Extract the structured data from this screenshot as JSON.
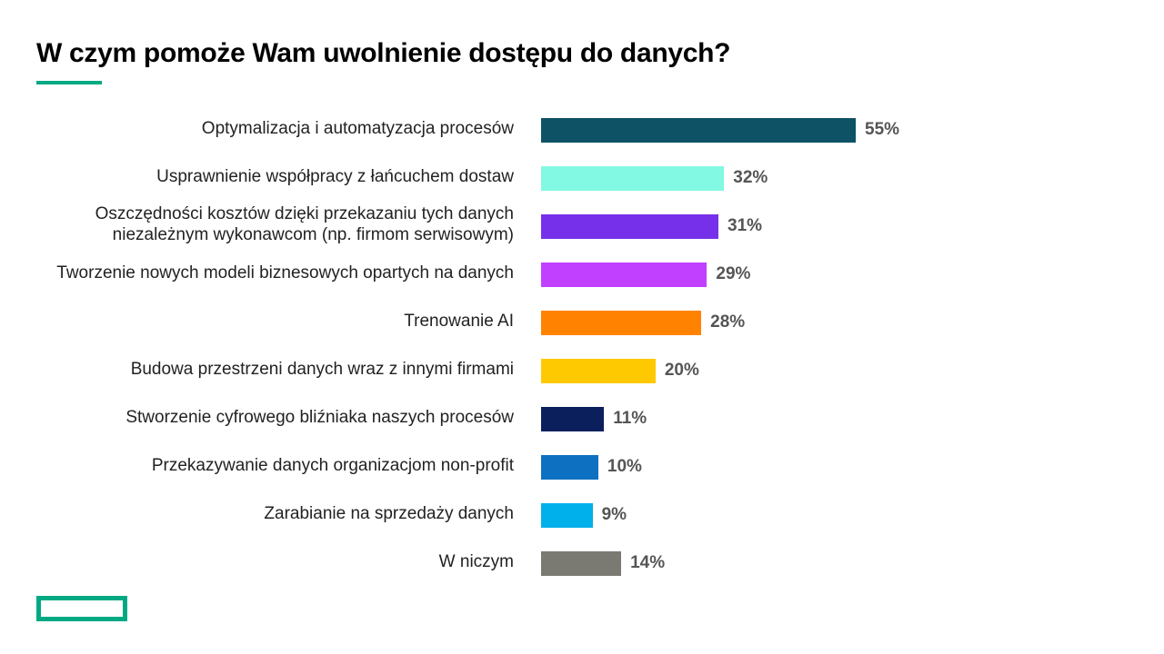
{
  "chart_data": {
    "type": "bar",
    "orientation": "horizontal",
    "title": "W czym pomoże Wam uwolnienie dostępu do danych?",
    "categories": [
      "Optymalizacja i automatyzacja procesów",
      "Usprawnienie współpracy z łańcuchem dostaw",
      "Oszczędności kosztów dzięki przekazaniu tych danych niezależnym wykonawcom (np. firmom serwisowym)",
      "Tworzenie nowych modeli biznesowych opartych na danych",
      "Trenowanie AI",
      "Budowa przestrzeni danych wraz z innymi firmami",
      "Stworzenie cyfrowego bliźniaka naszych procesów",
      "Przekazywanie danych organizacjom non-profit",
      "Zarabianie na sprzedaży danych",
      "W niczym"
    ],
    "values": [
      55,
      32,
      31,
      29,
      28,
      20,
      11,
      10,
      9,
      14
    ],
    "value_labels": [
      "55%",
      "32%",
      "31%",
      "29%",
      "28%",
      "20%",
      "11%",
      "10%",
      "9%",
      "14%"
    ],
    "colors": [
      "#0d5265",
      "#82f9e2",
      "#7630ea",
      "#c140ff",
      "#ff8300",
      "#fec901",
      "#0b1f5c",
      "#0e70c0",
      "#00b0eb",
      "#7a7a72"
    ]
  }
}
